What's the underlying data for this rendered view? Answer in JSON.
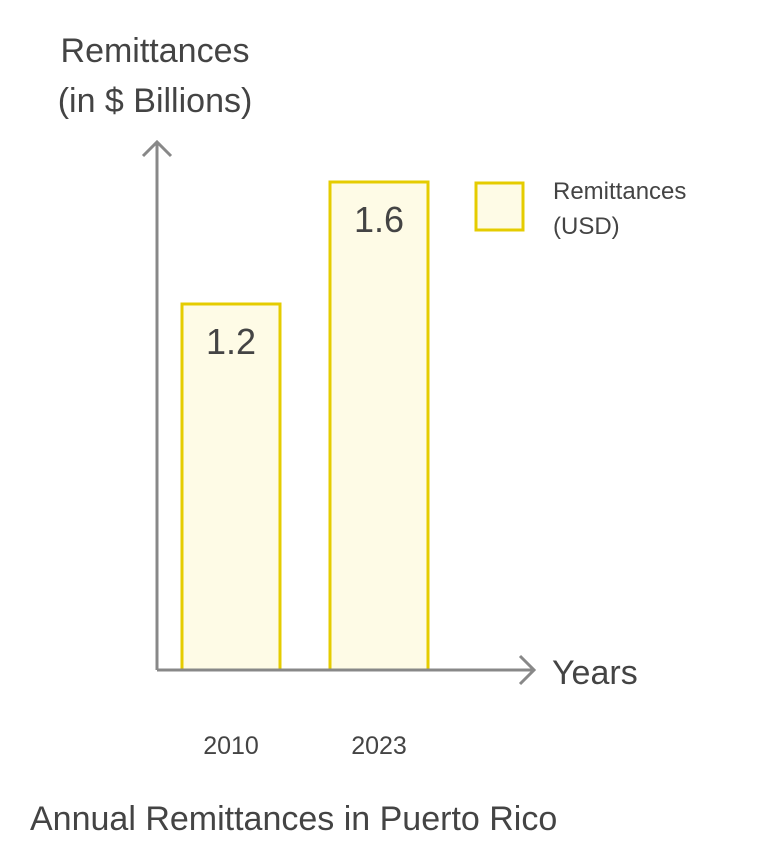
{
  "chart_data": {
    "type": "bar",
    "title": "Annual Remittances in Puerto Rico",
    "ylabel": [
      "Remittances",
      "(in $ Billions)"
    ],
    "xlabel": "Years",
    "categories": [
      "2010",
      "2023"
    ],
    "series": [
      {
        "name": "Remittances (USD)",
        "values": [
          1.2,
          1.6
        ]
      }
    ],
    "data_labels": [
      "1.2",
      "1.6"
    ],
    "legend": {
      "lines": [
        "Remittances",
        "(USD)"
      ],
      "placement": "top-right"
    },
    "ylim": [
      0,
      1.7
    ],
    "grid": false,
    "colors": {
      "bar_fill": "#fefbe6",
      "bar_stroke": "#e5cc00",
      "axis": "#888888",
      "text": "#444444"
    }
  }
}
